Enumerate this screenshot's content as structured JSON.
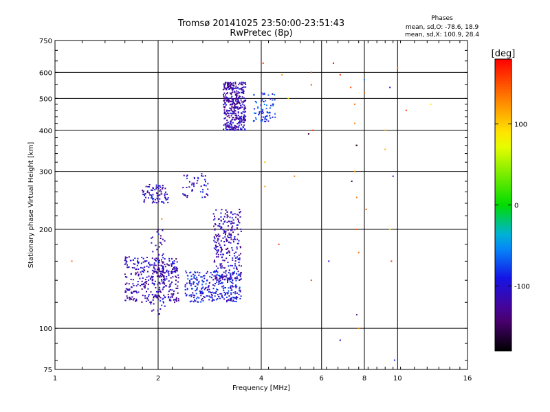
{
  "chart_data": {
    "type": "scatter",
    "title": "Tromsø 20141025 23:50:00-23:51:43",
    "subtitle": "RwPretec (8p)",
    "xlabel": "Frequency [MHz]",
    "ylabel": "Stationary phase Virtual Height [km]",
    "x_scale": "log",
    "y_scale": "log",
    "xlim": [
      1,
      16
    ],
    "ylim": [
      75,
      750
    ],
    "x_ticks": [
      "1",
      "2",
      "4",
      "6",
      "8",
      "10",
      "16"
    ],
    "y_ticks": [
      "75",
      "100",
      "200",
      "300",
      "400",
      "500",
      "600",
      "750"
    ],
    "grid": true,
    "legend_title": "Phases",
    "legend_lines": [
      "mean, sd,O: -78.6, 18.9",
      "mean, sd,X: 100.9, 28.4"
    ],
    "colorbar": {
      "label": "[deg]",
      "range": [
        -180,
        180
      ],
      "ticks": [
        "100",
        "0",
        "-100"
      ],
      "tick_values": [
        100,
        0,
        -100
      ]
    },
    "clusters": [
      {
        "f": [
          1.6,
          2.3
        ],
        "h": [
          120,
          165
        ],
        "phase": -115,
        "n": 360
      },
      {
        "f": [
          1.9,
          2.1
        ],
        "h": [
          110,
          200
        ],
        "phase": -110,
        "n": 70
      },
      {
        "f": [
          2.4,
          3.5
        ],
        "h": [
          120,
          150
        ],
        "phase": -95,
        "n": 300
      },
      {
        "f": [
          2.9,
          3.5
        ],
        "h": [
          140,
          230
        ],
        "phase": -115,
        "n": 260
      },
      {
        "f": [
          1.8,
          2.15
        ],
        "h": [
          240,
          275
        ],
        "phase": -110,
        "n": 80
      },
      {
        "f": [
          2.35,
          2.8
        ],
        "h": [
          250,
          295
        ],
        "phase": -105,
        "n": 50
      },
      {
        "f": [
          3.1,
          3.6
        ],
        "h": [
          400,
          560
        ],
        "phase": -118,
        "n": 380
      },
      {
        "f": [
          3.8,
          4.4
        ],
        "h": [
          425,
          520
        ],
        "phase": -85,
        "n": 70
      }
    ],
    "points": [
      [
        1.12,
        160,
        140
      ],
      [
        2.05,
        215,
        130
      ],
      [
        4.05,
        640,
        150
      ],
      [
        4.6,
        590,
        120
      ],
      [
        4.8,
        500,
        95
      ],
      [
        5.6,
        600,
        160
      ],
      [
        5.6,
        550,
        155
      ],
      [
        5.65,
        400,
        160
      ],
      [
        6.5,
        640,
        170
      ],
      [
        6.8,
        590,
        160
      ],
      [
        7.3,
        540,
        150
      ],
      [
        7.5,
        480,
        140
      ],
      [
        7.5,
        420,
        130
      ],
      [
        7.55,
        360,
        120
      ],
      [
        7.5,
        300,
        125
      ],
      [
        7.6,
        250,
        135
      ],
      [
        7.6,
        200,
        150
      ],
      [
        7.7,
        170,
        140
      ],
      [
        8.1,
        230,
        150
      ],
      [
        8.0,
        520,
        140
      ],
      [
        9.2,
        400,
        120
      ],
      [
        9.2,
        350,
        110
      ],
      [
        9.5,
        200,
        95
      ],
      [
        9.6,
        160,
        160
      ],
      [
        10.0,
        620,
        140
      ],
      [
        10.6,
        460,
        160
      ],
      [
        12.5,
        480,
        90
      ],
      [
        6.3,
        160,
        -95
      ],
      [
        7.35,
        280,
        -150
      ],
      [
        7.6,
        110,
        -140
      ],
      [
        5.5,
        390,
        -160
      ],
      [
        6.8,
        92,
        -110
      ],
      [
        9.8,
        80,
        -80
      ],
      [
        8.0,
        570,
        -60
      ],
      [
        9.5,
        540,
        -95
      ],
      [
        9.7,
        290,
        -90
      ],
      [
        7.6,
        360,
        -170
      ],
      [
        4.5,
        180,
        160
      ],
      [
        5.0,
        290,
        135
      ],
      [
        5.6,
        140,
        150
      ],
      [
        4.1,
        320,
        110
      ],
      [
        4.1,
        270,
        120
      ],
      [
        7.7,
        100,
        125
      ]
    ]
  }
}
